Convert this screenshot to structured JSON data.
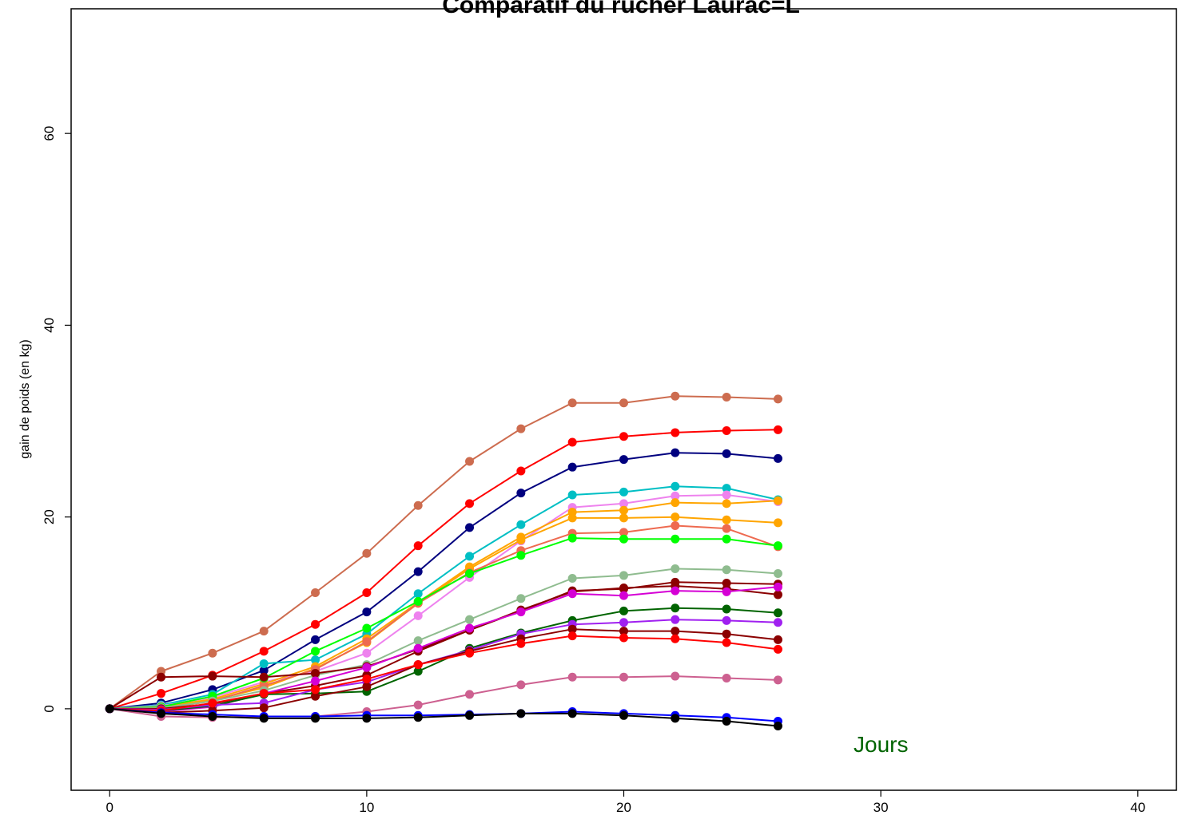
{
  "chart_data": {
    "type": "line",
    "title": "Comparatif du rucher Laurac=L",
    "xlabel": "",
    "ylabel": "gain de poids (en kg)",
    "annotation": "Jours",
    "annotation_color": "#006400",
    "xlim": [
      -1.5,
      41.5
    ],
    "ylim": [
      -8.5,
      73
    ],
    "x_ticks": [
      0,
      10,
      20,
      30,
      40
    ],
    "y_ticks": [
      0,
      20,
      40,
      60
    ],
    "grid": false,
    "legend": "none",
    "x": [
      0,
      2,
      4,
      6,
      8,
      10,
      12,
      14,
      16,
      18,
      20,
      22,
      24,
      26
    ],
    "series": [
      {
        "color": "#CD6C4F",
        "values": [
          0,
          3.9,
          5.8,
          8.1,
          12.1,
          16.2,
          21.2,
          25.8,
          29.2,
          31.9,
          31.9,
          32.6,
          32.5,
          32.3
        ]
      },
      {
        "color": "#FF0000",
        "values": [
          0,
          1.6,
          3.5,
          6.0,
          8.8,
          12.1,
          17.0,
          21.4,
          24.8,
          27.8,
          28.4,
          28.8,
          29.0,
          29.1
        ]
      },
      {
        "color": "#00007F",
        "values": [
          0,
          0.6,
          2.0,
          4.0,
          7.2,
          10.1,
          14.3,
          18.9,
          22.5,
          25.2,
          26.0,
          26.7,
          26.6,
          26.1
        ]
      },
      {
        "color": "#00BFC4",
        "values": [
          0,
          0.4,
          1.5,
          4.7,
          5.1,
          7.8,
          12.0,
          15.9,
          19.2,
          22.3,
          22.6,
          23.2,
          23.0,
          21.8
        ]
      },
      {
        "color": "#EE82EE",
        "values": [
          0,
          0.3,
          1.2,
          2.8,
          3.9,
          5.8,
          9.7,
          13.7,
          17.5,
          21.0,
          21.4,
          22.2,
          22.3,
          21.6
        ]
      },
      {
        "color": "#FFA500",
        "values": [
          0,
          0.2,
          1.0,
          2.6,
          4.4,
          7.3,
          11.1,
          14.8,
          17.9,
          20.5,
          20.7,
          21.5,
          21.4,
          21.7
        ]
      },
      {
        "color": "#FFA500",
        "values": [
          0,
          0.1,
          0.9,
          2.2,
          4.2,
          6.9,
          11.0,
          14.6,
          17.6,
          19.9,
          19.9,
          20.0,
          19.7,
          19.4
        ]
      },
      {
        "color": "#EE6A50",
        "values": [
          0,
          0.0,
          0.8,
          2.4,
          4.1,
          7.0,
          11.0,
          14.2,
          16.5,
          18.3,
          18.4,
          19.1,
          18.8,
          16.9
        ]
      },
      {
        "color": "#00FF00",
        "values": [
          0,
          0.2,
          1.3,
          3.2,
          6.0,
          8.4,
          11.2,
          14.1,
          16.0,
          17.8,
          17.7,
          17.7,
          17.7,
          17.0
        ]
      },
      {
        "color": "#8FBC8F",
        "values": [
          0,
          0.1,
          0.8,
          1.9,
          3.5,
          4.6,
          7.1,
          9.3,
          11.5,
          13.6,
          13.9,
          14.6,
          14.5,
          14.1
        ]
      },
      {
        "color": "#8B0000",
        "values": [
          0,
          3.3,
          3.4,
          3.3,
          3.7,
          4.4,
          6.2,
          8.2,
          10.2,
          12.3,
          12.5,
          13.2,
          13.1,
          13.0
        ]
      },
      {
        "color": "#8B0000",
        "values": [
          0,
          0.0,
          0.5,
          1.6,
          2.4,
          3.5,
          6.0,
          8.2,
          10.3,
          12.2,
          12.6,
          12.8,
          12.5,
          11.9
        ]
      },
      {
        "color": "#D500D5",
        "values": [
          0,
          -0.3,
          0.2,
          1.6,
          2.9,
          4.3,
          6.3,
          8.4,
          10.1,
          12.0,
          11.8,
          12.3,
          12.2,
          12.7
        ]
      },
      {
        "color": "#006400",
        "values": [
          0,
          -0.2,
          0.3,
          1.5,
          1.6,
          1.8,
          3.9,
          6.3,
          7.9,
          9.2,
          10.2,
          10.5,
          10.4,
          10.0
        ]
      },
      {
        "color": "#A020F0",
        "values": [
          0,
          -0.1,
          0.4,
          0.6,
          2.0,
          2.8,
          4.6,
          6.1,
          7.8,
          8.8,
          9.0,
          9.3,
          9.2,
          9.0
        ]
      },
      {
        "color": "#8B0000",
        "values": [
          0,
          -0.4,
          -0.2,
          0.1,
          1.3,
          2.3,
          4.6,
          6.0,
          7.3,
          8.3,
          8.1,
          8.1,
          7.8,
          7.2
        ]
      },
      {
        "color": "#FF0000",
        "values": [
          0,
          -0.2,
          0.6,
          1.6,
          2.0,
          3.1,
          4.6,
          5.8,
          6.8,
          7.6,
          7.4,
          7.3,
          6.9,
          6.2
        ]
      },
      {
        "color": "#CD6090",
        "values": [
          0,
          -0.8,
          -0.9,
          -0.8,
          -0.8,
          -0.3,
          0.4,
          1.5,
          2.5,
          3.3,
          3.3,
          3.4,
          3.2,
          3.0
        ]
      },
      {
        "color": "#0000FF",
        "values": [
          0,
          -0.4,
          -0.6,
          -0.8,
          -0.8,
          -0.7,
          -0.7,
          -0.6,
          -0.5,
          -0.3,
          -0.5,
          -0.7,
          -0.9,
          -1.3
        ]
      },
      {
        "color": "#000000",
        "values": [
          0,
          -0.5,
          -0.8,
          -1.0,
          -1.0,
          -1.0,
          -0.9,
          -0.7,
          -0.5,
          -0.5,
          -0.7,
          -1.0,
          -1.3,
          -1.8
        ]
      }
    ]
  }
}
